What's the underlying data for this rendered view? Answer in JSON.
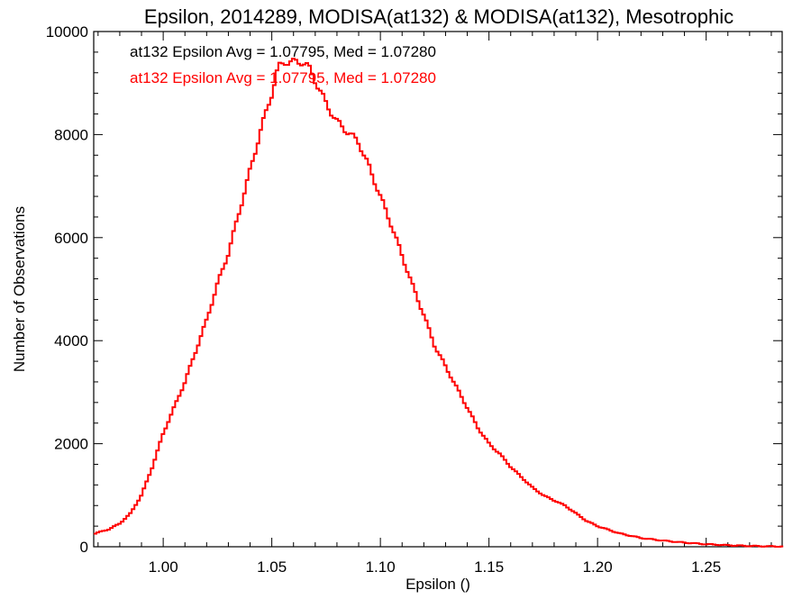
{
  "chart_data": {
    "type": "histogram",
    "title": "Epsilon, 2014289, MODISA(at132) & MODISA(at132), Mesotrophic",
    "xlabel": "Epsilon ()",
    "ylabel": "Number of Observations",
    "xlim": [
      0.968,
      1.285
    ],
    "ylim": [
      0,
      10000
    ],
    "xticks": [
      1.0,
      1.05,
      1.1,
      1.15,
      1.2,
      1.25
    ],
    "xtick_labels": [
      "1.00",
      "1.05",
      "1.10",
      "1.15",
      "1.20",
      "1.25"
    ],
    "yticks": [
      0,
      2000,
      4000,
      6000,
      8000,
      10000
    ],
    "ytick_labels": [
      "0",
      "2000",
      "4000",
      "6000",
      "8000",
      "10000"
    ],
    "grid": false,
    "annotations": [
      {
        "text": "at132 Epsilon Avg = 1.07795, Med = 1.07280",
        "color": "#000000"
      },
      {
        "text": "at132 Epsilon Avg = 1.07795, Med = 1.07280",
        "color": "#ff0000"
      }
    ],
    "series": [
      {
        "color": "#ff0000",
        "style": "step",
        "points": [
          [
            0.968,
            250
          ],
          [
            0.975,
            340
          ],
          [
            0.98,
            450
          ],
          [
            0.985,
            650
          ],
          [
            0.99,
            1000
          ],
          [
            0.995,
            1550
          ],
          [
            1.0,
            2200
          ],
          [
            1.005,
            2700
          ],
          [
            1.01,
            3200
          ],
          [
            1.015,
            3800
          ],
          [
            1.02,
            4400
          ],
          [
            1.025,
            5100
          ],
          [
            1.03,
            5700
          ],
          [
            1.035,
            6500
          ],
          [
            1.04,
            7300
          ],
          [
            1.045,
            8100
          ],
          [
            1.05,
            8800
          ],
          [
            1.053,
            9300
          ],
          [
            1.056,
            9420
          ],
          [
            1.06,
            9400
          ],
          [
            1.064,
            9420
          ],
          [
            1.067,
            9300
          ],
          [
            1.07,
            9050
          ],
          [
            1.075,
            8600
          ],
          [
            1.08,
            8250
          ],
          [
            1.085,
            8050
          ],
          [
            1.09,
            7850
          ],
          [
            1.095,
            7350
          ],
          [
            1.1,
            6800
          ],
          [
            1.105,
            6250
          ],
          [
            1.11,
            5650
          ],
          [
            1.115,
            5050
          ],
          [
            1.12,
            4500
          ],
          [
            1.125,
            3900
          ],
          [
            1.13,
            3500
          ],
          [
            1.135,
            3100
          ],
          [
            1.14,
            2700
          ],
          [
            1.145,
            2300
          ],
          [
            1.15,
            2000
          ],
          [
            1.155,
            1800
          ],
          [
            1.16,
            1550
          ],
          [
            1.165,
            1350
          ],
          [
            1.17,
            1150
          ],
          [
            1.175,
            1000
          ],
          [
            1.18,
            900
          ],
          [
            1.185,
            800
          ],
          [
            1.19,
            650
          ],
          [
            1.195,
            500
          ],
          [
            1.2,
            400
          ],
          [
            1.21,
            260
          ],
          [
            1.22,
            170
          ],
          [
            1.23,
            120
          ],
          [
            1.24,
            80
          ],
          [
            1.25,
            50
          ],
          [
            1.26,
            30
          ],
          [
            1.27,
            15
          ],
          [
            1.28,
            8
          ],
          [
            1.285,
            5
          ]
        ]
      }
    ]
  }
}
